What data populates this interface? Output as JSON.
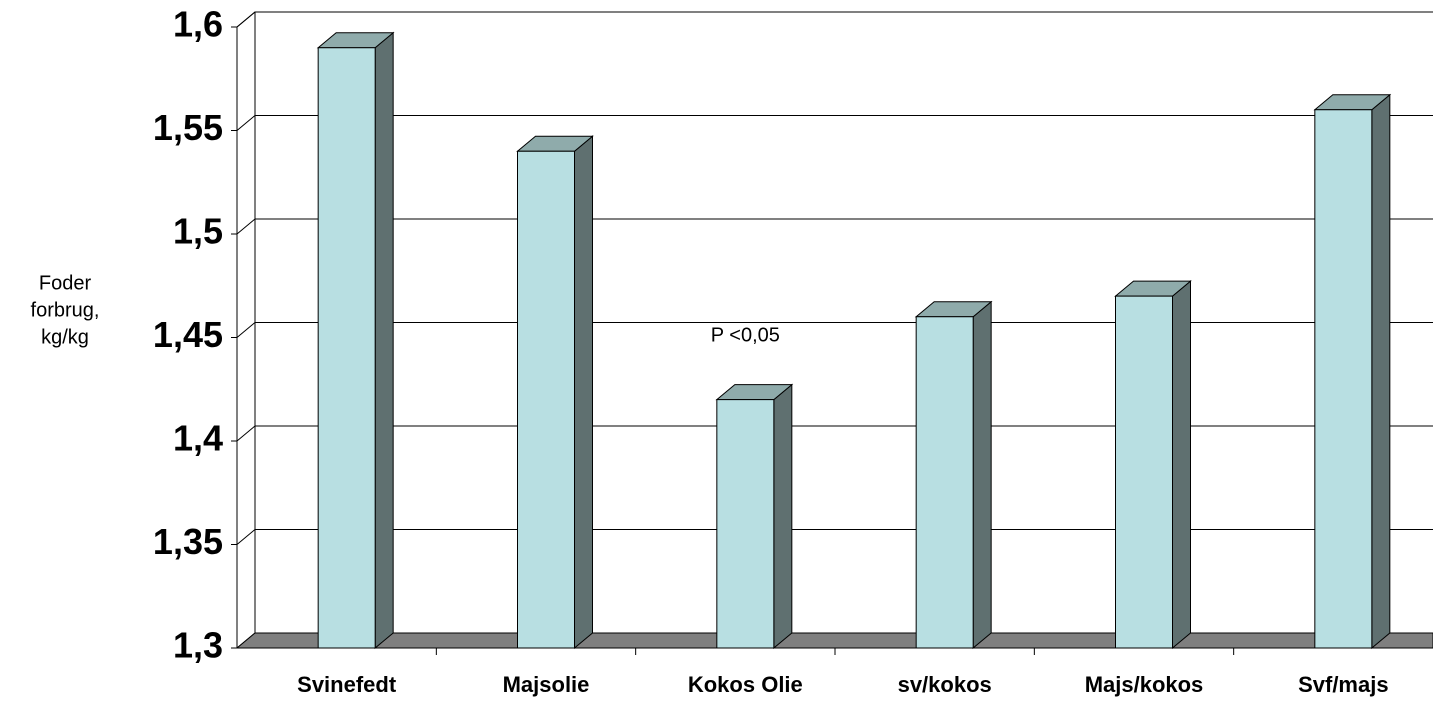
{
  "chart_data": {
    "type": "bar3d",
    "ylabel": [
      "Foder",
      "forbrug,",
      "kg/kg"
    ],
    "annotation": "P <0,05",
    "categories": [
      "Svinefedt",
      "Majsolie",
      "Kokos Olie",
      "sv/kokos",
      "Majs/kokos",
      "Svf/majs"
    ],
    "values": [
      1.59,
      1.54,
      1.42,
      1.46,
      1.47,
      1.56
    ],
    "color": "#b8dfe2",
    "ylim": [
      1.3,
      1.6
    ],
    "yticks": [
      {
        "value": 1.3,
        "label": "1,3"
      },
      {
        "value": 1.35,
        "label": "1,35"
      },
      {
        "value": 1.4,
        "label": "1,4"
      },
      {
        "value": 1.45,
        "label": "1,45"
      },
      {
        "value": 1.5,
        "label": "1,5"
      },
      {
        "value": 1.55,
        "label": "1,55"
      },
      {
        "value": 1.6,
        "label": "1,6"
      }
    ],
    "grid": true
  }
}
